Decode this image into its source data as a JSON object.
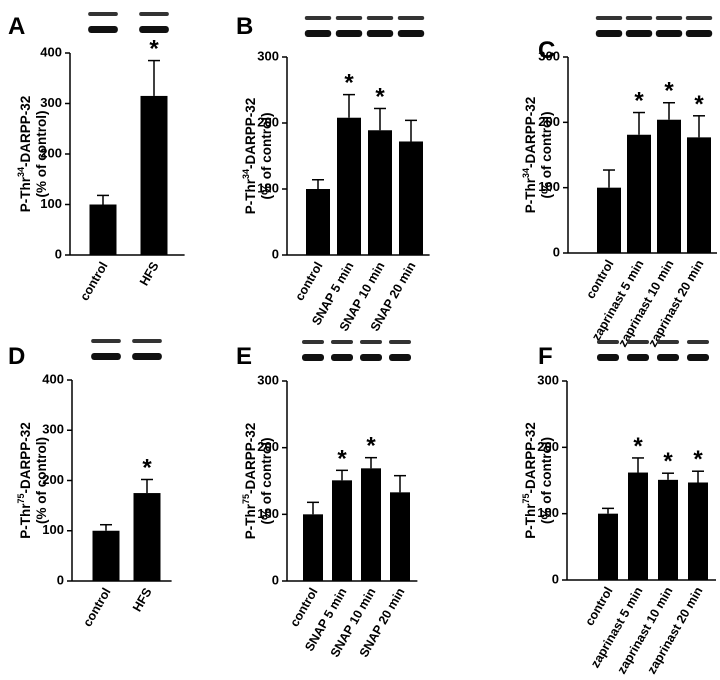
{
  "chart_data": [
    {
      "type": "bar",
      "panel": "A",
      "ylabel": {
        "prefix": "P-Thr",
        "sup": "34",
        "suffix": "-DARPP-32"
      },
      "ylabel2": "(% of control)",
      "categories": [
        "control",
        "HFS"
      ],
      "values": [
        100,
        315
      ],
      "errors": [
        18,
        70
      ],
      "annotations": [
        null,
        "*"
      ],
      "color": "#000000",
      "ylim": [
        0,
        400
      ],
      "yticks": [
        0,
        100,
        200,
        300,
        400
      ]
    },
    {
      "type": "bar",
      "panel": "B",
      "ylabel": {
        "prefix": "P-Thr",
        "sup": "34",
        "suffix": "-DARPP-32"
      },
      "ylabel2": "(% of control)",
      "categories": [
        "control",
        "SNAP  5 min",
        "SNAP  10 min",
        "SNAP  20 min"
      ],
      "values": [
        100,
        208,
        189,
        172
      ],
      "errors": [
        14,
        35,
        33,
        32
      ],
      "annotations": [
        null,
        "*",
        "*",
        null
      ],
      "color": "#000000",
      "ylim": [
        0,
        300
      ],
      "yticks": [
        0,
        100,
        200,
        300
      ]
    },
    {
      "type": "bar",
      "panel": "C",
      "ylabel": {
        "prefix": "P-Thr",
        "sup": "34",
        "suffix": "-DARPP-32"
      },
      "ylabel2": "(% of control)",
      "categories": [
        "control",
        "zaprinast 5 min",
        "zaprinast 10 min",
        "zaprinast 20 min"
      ],
      "values": [
        100,
        181,
        204,
        177
      ],
      "errors": [
        27,
        34,
        26,
        33
      ],
      "annotations": [
        null,
        "*",
        "*",
        "*"
      ],
      "color": "#000000",
      "ylim": [
        0,
        300
      ],
      "yticks": [
        0,
        100,
        200,
        300
      ]
    },
    {
      "type": "bar",
      "panel": "D",
      "ylabel": {
        "prefix": "P-Thr",
        "sup": "75",
        "suffix": "-DARPP-32"
      },
      "ylabel2": "(% of control)",
      "categories": [
        "control",
        "HFS"
      ],
      "values": [
        100,
        175
      ],
      "errors": [
        12,
        27
      ],
      "annotations": [
        null,
        "*"
      ],
      "color": "#000000",
      "ylim": [
        0,
        400
      ],
      "yticks": [
        0,
        100,
        200,
        300,
        400
      ]
    },
    {
      "type": "bar",
      "panel": "E",
      "ylabel": {
        "prefix": "P-Thr",
        "sup": "75",
        "suffix": "-DARPP-32"
      },
      "ylabel2": "(% of control)",
      "categories": [
        "control",
        "SNAP  5 min",
        "SNAP  10 min",
        "SNAP  20 min"
      ],
      "values": [
        100,
        151,
        169,
        133
      ],
      "errors": [
        18,
        15,
        16,
        25
      ],
      "annotations": [
        null,
        "*",
        "*",
        null
      ],
      "color": "#000000",
      "ylim": [
        0,
        300
      ],
      "yticks": [
        0,
        100,
        200,
        300
      ]
    },
    {
      "type": "bar",
      "panel": "F",
      "ylabel": {
        "prefix": "P-Thr",
        "sup": "75",
        "suffix": "-DARPP-32"
      },
      "ylabel2": "(% of control)",
      "categories": [
        "control",
        "zaprinast 5 min",
        "zaprinast  10 min",
        "zaprinast  20 min"
      ],
      "values": [
        100,
        162,
        151,
        147
      ],
      "errors": [
        8,
        22,
        10,
        17
      ],
      "annotations": [
        null,
        "*",
        "*",
        "*"
      ],
      "color": "#000000",
      "ylim": [
        0,
        300
      ],
      "yticks": [
        0,
        100,
        200,
        300
      ]
    }
  ]
}
